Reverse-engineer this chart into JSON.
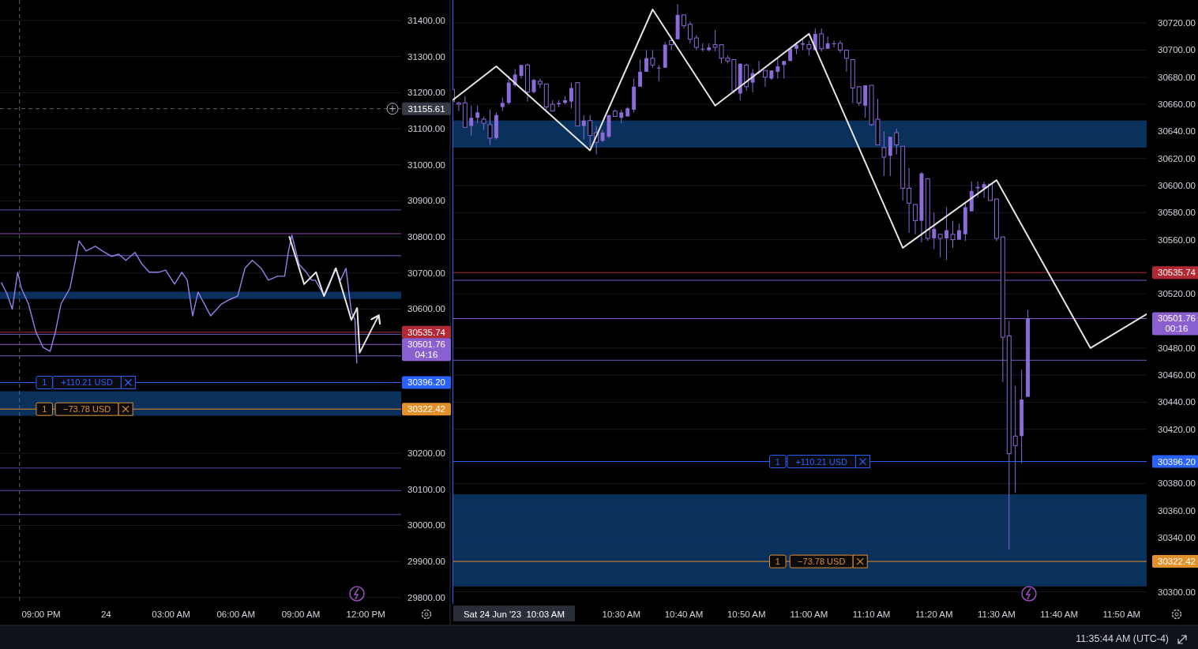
{
  "chart_data": [
    {
      "type": "line",
      "xlim": [
        "2023-06-23T19:06",
        "2023-06-24T13:38"
      ],
      "ylim": [
        29782,
        31457
      ],
      "grid": "y",
      "xticks": [
        {
          "value": "2023-06-23T21:00",
          "label": "09:00 PM"
        },
        {
          "value": "2023-06-24T00:00",
          "label": "24"
        },
        {
          "value": "2023-06-24T03:00",
          "label": "03:00 AM"
        },
        {
          "value": "2023-06-24T06:00",
          "label": "06:00 AM"
        },
        {
          "value": "2023-06-24T09:00",
          "label": "09:00 AM"
        },
        {
          "value": "2023-06-24T12:00",
          "label": "12:00 PM"
        }
      ],
      "yticks": [
        {
          "value": 29800,
          "label": "29800.00"
        },
        {
          "value": 29900,
          "label": "29900.00"
        },
        {
          "value": 30000,
          "label": "30000.00"
        },
        {
          "value": 30100,
          "label": "30100.00"
        },
        {
          "value": 30200,
          "label": "30200.00"
        },
        {
          "value": 30600,
          "label": "30600.00"
        },
        {
          "value": 30700,
          "label": "30700.00"
        },
        {
          "value": 30800,
          "label": "30800.00"
        },
        {
          "value": 30900,
          "label": "30900.00"
        },
        {
          "value": 31000,
          "label": "31000.00"
        },
        {
          "value": 31100,
          "label": "31100.00"
        },
        {
          "value": 31200,
          "label": "31200.00"
        },
        {
          "value": 31300,
          "label": "31300.00"
        },
        {
          "value": 31400,
          "label": "31400.00"
        }
      ],
      "series": [
        {
          "color": "#9a7ee8",
          "x": [
            "2023-06-23T19:10",
            "2023-06-23T19:25",
            "2023-06-23T19:40",
            "2023-06-23T19:55",
            "2023-06-23T20:05",
            "2023-06-23T20:25",
            "2023-06-23T20:45",
            "2023-06-23T21:05",
            "2023-06-23T21:25",
            "2023-06-23T21:40",
            "2023-06-23T21:55",
            "2023-06-23T22:20",
            "2023-06-23T22:35",
            "2023-06-23T22:45",
            "2023-06-23T23:05",
            "2023-06-23T23:30",
            "2023-06-23T23:50",
            "2023-06-24T00:15",
            "2023-06-24T00:35",
            "2023-06-24T00:55",
            "2023-06-24T01:20",
            "2023-06-24T01:40",
            "2023-06-24T02:00",
            "2023-06-24T02:25",
            "2023-06-24T02:45",
            "2023-06-24T03:10",
            "2023-06-24T03:30",
            "2023-06-24T03:45",
            "2023-06-24T04:00",
            "2023-06-24T04:15",
            "2023-06-24T04:50",
            "2023-06-24T05:20",
            "2023-06-24T05:40",
            "2023-06-24T06:05",
            "2023-06-24T06:25",
            "2023-06-24T06:45",
            "2023-06-24T07:10",
            "2023-06-24T07:30",
            "2023-06-24T07:55",
            "2023-06-24T08:15",
            "2023-06-24T08:25",
            "2023-06-24T08:35",
            "2023-06-24T08:55",
            "2023-06-24T09:15",
            "2023-06-24T09:30",
            "2023-06-24T09:40",
            "2023-06-24T10:05",
            "2023-06-24T10:20",
            "2023-06-24T10:35",
            "2023-06-24T10:50",
            "2023-06-24T11:05",
            "2023-06-24T11:20",
            "2023-06-24T11:30",
            "2023-06-24T11:35"
          ],
          "values": [
            30673,
            30643,
            30600,
            30702,
            30658,
            30614,
            30538,
            30494,
            30483,
            30538,
            30614,
            30658,
            30735,
            30789,
            30761,
            30774,
            30761,
            30746,
            30752,
            30735,
            30757,
            30724,
            30702,
            30702,
            30708,
            30669,
            30702,
            30680,
            30581,
            30647,
            30581,
            30614,
            30625,
            30636,
            30713,
            30735,
            30713,
            30680,
            30691,
            30691,
            30757,
            30805,
            30724,
            30702,
            30680,
            30680,
            30636,
            30669,
            30713,
            30680,
            30713,
            30592,
            30570,
            30450
          ]
        },
        {
          "color": "#e6e6e6",
          "x": [
            "2023-06-24T08:28",
            "2023-06-24T09:09",
            "2023-06-24T09:42",
            "2023-06-24T10:04",
            "2023-06-24T10:37",
            "2023-06-24T11:20",
            "2023-06-24T11:36",
            "2023-06-24T11:43",
            "2023-06-24T12:33"
          ],
          "values": [
            30800,
            30669,
            30702,
            30636,
            30713,
            30570,
            30603,
            30479,
            30577
          ]
        }
      ],
      "bands": [
        {
          "axis": "y",
          "from": 30628,
          "to": 30648,
          "color": "#0b3566"
        },
        {
          "axis": "y",
          "from": 30304,
          "to": 30372,
          "color": "#0b3566"
        }
      ],
      "ref_lines": [
        {
          "axis": "y",
          "value": 31155.61,
          "label": "31155.61",
          "color": "#5d606b",
          "line_style": "dashed"
        },
        {
          "axis": "x",
          "value": "2023-06-23T20:00",
          "color": "#5d606b",
          "line_style": "dashed"
        },
        {
          "axis": "y",
          "value": 30875,
          "color": "#5b46b0"
        },
        {
          "axis": "y",
          "value": 30809,
          "color": "#8c45b5"
        },
        {
          "axis": "y",
          "value": 30748,
          "color": "#6e62c0"
        },
        {
          "axis": "y",
          "value": 30535.74,
          "label": "30535.74",
          "color": "#b22833"
        },
        {
          "axis": "y",
          "value": 30530,
          "color": "#6e62c0"
        },
        {
          "axis": "y",
          "value": 30501.76,
          "label": "30501.76\n04:16",
          "color": "#8a5fd0"
        },
        {
          "axis": "y",
          "value": 30470,
          "color": "#6e62c0"
        },
        {
          "axis": "y",
          "value": 30396.2,
          "label": "30396.20",
          "color": "#2962ff"
        },
        {
          "axis": "y",
          "value": 30322.42,
          "label": "30322.42",
          "color": "#e3902a"
        },
        {
          "axis": "y",
          "value": 30159,
          "color": "#5046a8"
        },
        {
          "axis": "y",
          "value": 30096,
          "color": "#5046a8"
        },
        {
          "axis": "y",
          "value": 30030,
          "color": "#5046a8"
        }
      ],
      "annotations": [
        {
          "text": "1",
          "x": "2023-06-23T21:09",
          "y": 30396.2
        },
        {
          "text": "+110.21 USD",
          "x": "2023-06-23T23:07",
          "y": 30396.2
        },
        {
          "text": "1",
          "x": "2023-06-23T21:09",
          "y": 30322.42
        },
        {
          "text": "−73.78 USD",
          "x": "2023-06-23T23:07",
          "y": 30322.42
        }
      ]
    },
    {
      "type": "candlestick",
      "xlim": [
        "2023-06-24T10:03",
        "2023-06-24T11:54"
      ],
      "ylim": [
        30291,
        30737
      ],
      "grid": "y",
      "xticks": [
        {
          "value": "2023-06-24T10:30",
          "label": "10:30 AM"
        },
        {
          "value": "2023-06-24T10:40",
          "label": "10:40 AM"
        },
        {
          "value": "2023-06-24T10:50",
          "label": "10:50 AM"
        },
        {
          "value": "2023-06-24T11:00",
          "label": "11:00 AM"
        },
        {
          "value": "2023-06-24T11:10",
          "label": "11:10 AM"
        },
        {
          "value": "2023-06-24T11:20",
          "label": "11:20 AM"
        },
        {
          "value": "2023-06-24T11:30",
          "label": "11:30 AM"
        },
        {
          "value": "2023-06-24T11:40",
          "label": "11:40 AM"
        },
        {
          "value": "2023-06-24T11:50",
          "label": "11:50 AM"
        }
      ],
      "yticks": [
        {
          "value": 30300,
          "label": "30300.00"
        },
        {
          "value": 30340,
          "label": "30340.00"
        },
        {
          "value": 30360,
          "label": "30360.00"
        },
        {
          "value": 30380,
          "label": "30380.00"
        },
        {
          "value": 30420,
          "label": "30420.00"
        },
        {
          "value": 30440,
          "label": "30440.00"
        },
        {
          "value": 30460,
          "label": "30460.00"
        },
        {
          "value": 30480,
          "label": "30480.00"
        },
        {
          "value": 30520,
          "label": "30520.00"
        },
        {
          "value": 30560,
          "label": "30560.00"
        },
        {
          "value": 30580,
          "label": "30580.00"
        },
        {
          "value": 30600,
          "label": "30600.00"
        },
        {
          "value": 30620,
          "label": "30620.00"
        },
        {
          "value": 30640,
          "label": "30640.00"
        },
        {
          "value": 30660,
          "label": "30660.00"
        },
        {
          "value": 30680,
          "label": "30680.00"
        },
        {
          "value": 30700,
          "label": "30700.00"
        },
        {
          "value": 30720,
          "label": "30720.00"
        }
      ],
      "series": [
        {
          "color": "#8a6bd8",
          "x": [
            "2023-06-24T10:03",
            "2023-06-24T10:04",
            "2023-06-24T10:05",
            "2023-06-24T10:06",
            "2023-06-24T10:07",
            "2023-06-24T10:08",
            "2023-06-24T10:09",
            "2023-06-24T10:10",
            "2023-06-24T10:11",
            "2023-06-24T10:12",
            "2023-06-24T10:13",
            "2023-06-24T10:14",
            "2023-06-24T10:15",
            "2023-06-24T10:16",
            "2023-06-24T10:17",
            "2023-06-24T10:18",
            "2023-06-24T10:19",
            "2023-06-24T10:20",
            "2023-06-24T10:21",
            "2023-06-24T10:22",
            "2023-06-24T10:23",
            "2023-06-24T10:24",
            "2023-06-24T10:25",
            "2023-06-24T10:26",
            "2023-06-24T10:27",
            "2023-06-24T10:28",
            "2023-06-24T10:29",
            "2023-06-24T10:30",
            "2023-06-24T10:31",
            "2023-06-24T10:32",
            "2023-06-24T10:33",
            "2023-06-24T10:34",
            "2023-06-24T10:35",
            "2023-06-24T10:36",
            "2023-06-24T10:37",
            "2023-06-24T10:38",
            "2023-06-24T10:39",
            "2023-06-24T10:40",
            "2023-06-24T10:41",
            "2023-06-24T10:42",
            "2023-06-24T10:43",
            "2023-06-24T10:44",
            "2023-06-24T10:45",
            "2023-06-24T10:46",
            "2023-06-24T10:47",
            "2023-06-24T10:48",
            "2023-06-24T10:49",
            "2023-06-24T10:50",
            "2023-06-24T10:51",
            "2023-06-24T10:52",
            "2023-06-24T10:53",
            "2023-06-24T10:54",
            "2023-06-24T10:55",
            "2023-06-24T10:56",
            "2023-06-24T10:57",
            "2023-06-24T10:58",
            "2023-06-24T10:59",
            "2023-06-24T11:00",
            "2023-06-24T11:01",
            "2023-06-24T11:02",
            "2023-06-24T11:03",
            "2023-06-24T11:04",
            "2023-06-24T11:05",
            "2023-06-24T11:06",
            "2023-06-24T11:07",
            "2023-06-24T11:08",
            "2023-06-24T11:09",
            "2023-06-24T11:10",
            "2023-06-24T11:11",
            "2023-06-24T11:12",
            "2023-06-24T11:13",
            "2023-06-24T11:14",
            "2023-06-24T11:15",
            "2023-06-24T11:16",
            "2023-06-24T11:17",
            "2023-06-24T11:18",
            "2023-06-24T11:19",
            "2023-06-24T11:20",
            "2023-06-24T11:21",
            "2023-06-24T11:22",
            "2023-06-24T11:23",
            "2023-06-24T11:24",
            "2023-06-24T11:25",
            "2023-06-24T11:26",
            "2023-06-24T11:27",
            "2023-06-24T11:28",
            "2023-06-24T11:29",
            "2023-06-24T11:30",
            "2023-06-24T11:31",
            "2023-06-24T11:32",
            "2023-06-24T11:33",
            "2023-06-24T11:34",
            "2023-06-24T11:35"
          ],
          "ohlc": [
            [
              30671,
              30671,
              30662,
              30662
            ],
            [
              30661,
              30662,
              30655,
              30660
            ],
            [
              30661,
              30666,
              30643,
              30643
            ],
            [
              30644,
              30659,
              30637,
              30650
            ],
            [
              30650,
              30659,
              30646,
              30654
            ],
            [
              30649,
              30651,
              30641,
              30646
            ],
            [
              30645,
              30656,
              30630,
              30635
            ],
            [
              30635,
              30654,
              30634,
              30652
            ],
            [
              30658,
              30665,
              30655,
              30661
            ],
            [
              30661,
              30681,
              30660,
              30676
            ],
            [
              30674,
              30686,
              30673,
              30682
            ],
            [
              30681,
              30689,
              30679,
              30689
            ],
            [
              30689,
              30690,
              30662,
              30669
            ],
            [
              30669,
              30679,
              30668,
              30678
            ],
            [
              30677,
              30679,
              30672,
              30675
            ],
            [
              30675,
              30675,
              30656,
              30658
            ],
            [
              30660,
              30663,
              30655,
              30655
            ],
            [
              30660,
              30663,
              30658,
              30661
            ],
            [
              30661,
              30666,
              30660,
              30663
            ],
            [
              30662,
              30676,
              30657,
              30672
            ],
            [
              30676,
              30676,
              30644,
              30644
            ],
            [
              30644,
              30652,
              30634,
              30648
            ],
            [
              30648,
              30652,
              30628,
              30637
            ],
            [
              30639,
              30644,
              30623,
              30632
            ],
            [
              30633,
              30641,
              30632,
              30639
            ],
            [
              30636,
              30652,
              30635,
              30652
            ],
            [
              30655,
              30656,
              30651,
              30651
            ],
            [
              30650,
              30656,
              30646,
              30654
            ],
            [
              30651,
              30658,
              30651,
              30657
            ],
            [
              30656,
              30679,
              30654,
              30673
            ],
            [
              30673,
              30693,
              30673,
              30684
            ],
            [
              30684,
              30700,
              30684,
              30694
            ],
            [
              30694,
              30700,
              30687,
              30689
            ],
            [
              30687,
              30689,
              30677,
              30687
            ],
            [
              30687,
              30706,
              30687,
              30704
            ],
            [
              30707,
              30709,
              30700,
              30704
            ],
            [
              30708,
              30734,
              30708,
              30726
            ],
            [
              30726,
              30726,
              30716,
              30718
            ],
            [
              30719,
              30721,
              30705,
              30708
            ],
            [
              30709,
              30711,
              30700,
              30702
            ],
            [
              30701,
              30705,
              30699,
              30701
            ],
            [
              30700,
              30705,
              30699,
              30702
            ],
            [
              30704,
              30715,
              30699,
              30702
            ],
            [
              30704,
              30704,
              30690,
              30694
            ],
            [
              30694,
              30696,
              30690,
              30692
            ],
            [
              30693,
              30693,
              30668,
              30670
            ],
            [
              30668,
              30690,
              30663,
              30690
            ],
            [
              30689,
              30690,
              30670,
              30673
            ],
            [
              30676,
              30686,
              30669,
              30683
            ],
            [
              30684,
              30692,
              30682,
              30684
            ],
            [
              30685,
              30685,
              30673,
              30680
            ],
            [
              30679,
              30685,
              30678,
              30685
            ],
            [
              30684,
              30694,
              30679,
              30688
            ],
            [
              30689,
              30692,
              30679,
              30692
            ],
            [
              30692,
              30701,
              30692,
              30701
            ],
            [
              30701,
              30706,
              30697,
              30704
            ],
            [
              30704,
              30708,
              30700,
              30705
            ],
            [
              30704,
              30707,
              30696,
              30701
            ],
            [
              30700,
              30716,
              30700,
              30712
            ],
            [
              30712,
              30716,
              30699,
              30701
            ],
            [
              30701,
              30710,
              30701,
              30705
            ],
            [
              30705,
              30707,
              30702,
              30705
            ],
            [
              30705,
              30707,
              30698,
              30700
            ],
            [
              30700,
              30700,
              30684,
              30694
            ],
            [
              30693,
              30693,
              30661,
              30672
            ],
            [
              30673,
              30673,
              30659,
              30661
            ],
            [
              30659,
              30674,
              30650,
              30674
            ],
            [
              30674,
              30674,
              30644,
              30645
            ],
            [
              30649,
              30664,
              30630,
              30630
            ],
            [
              30628,
              30640,
              30607,
              30621
            ],
            [
              30622,
              30636,
              30607,
              30636
            ],
            [
              30639,
              30642,
              30623,
              30630
            ],
            [
              30629,
              30629,
              30589,
              30598
            ],
            [
              30598,
              30613,
              30565,
              30587
            ],
            [
              30586,
              30586,
              30564,
              30574
            ],
            [
              30574,
              30610,
              30558,
              30609
            ],
            [
              30605,
              30605,
              30559,
              30561
            ],
            [
              30561,
              30580,
              30553,
              30568
            ],
            [
              30564,
              30564,
              30547,
              30561
            ],
            [
              30561,
              30584,
              30545,
              30567
            ],
            [
              30564,
              30574,
              30554,
              30560
            ],
            [
              30560,
              30572,
              30560,
              30567
            ],
            [
              30564,
              30588,
              30559,
              30584
            ],
            [
              30581,
              30603,
              30581,
              30596
            ],
            [
              30598,
              30603,
              30591,
              30599
            ],
            [
              30598,
              30603,
              30591,
              30601
            ],
            [
              30601,
              30601,
              30589,
              30589
            ],
            [
              30590,
              30590,
              30559,
              30561
            ],
            [
              30562,
              30562,
              30455,
              30488
            ],
            [
              30489,
              30500,
              30331,
              30402
            ],
            [
              30415,
              30452,
              30373,
              30408
            ],
            [
              30415,
              30464,
              30395,
              30442
            ],
            [
              30444,
              30508,
              30444,
              30502
            ]
          ]
        },
        {
          "type": "line",
          "color": "#e6e6e6",
          "x": [
            "2023-06-24T10:03",
            "2023-06-24T10:10",
            "2023-06-24T10:25",
            "2023-06-24T10:35",
            "2023-06-24T10:45",
            "2023-06-24T11:00",
            "2023-06-24T11:15",
            "2023-06-24T11:30",
            "2023-06-24T11:45",
            "2023-06-24T11:54"
          ],
          "values": [
            30663,
            30688,
            30626,
            30730,
            30659,
            30712,
            30554,
            30604,
            30480,
            30505
          ]
        }
      ],
      "bands": [
        {
          "axis": "y",
          "from": 30628,
          "to": 30648,
          "color": "#0b3566"
        },
        {
          "axis": "y",
          "from": 30304,
          "to": 30372,
          "color": "#0b3566"
        }
      ],
      "ref_lines": [
        {
          "axis": "x",
          "value": "2023-06-24T10:03",
          "label": "Sat 24 Jun '23  10:03 AM",
          "color": "#2962ff"
        },
        {
          "axis": "y",
          "value": 30535.74,
          "label": "30535.74",
          "color": "#b22833"
        },
        {
          "axis": "y",
          "value": 30530,
          "color": "#6e62c0"
        },
        {
          "axis": "y",
          "value": 30501.76,
          "label": "30501.76\n00:16",
          "color": "#8a5fd0"
        },
        {
          "axis": "y",
          "value": 30471,
          "color": "#6e62c0"
        },
        {
          "axis": "y",
          "value": 30396.2,
          "label": "30396.20",
          "color": "#2962ff"
        },
        {
          "axis": "y",
          "value": 30322.42,
          "label": "30322.42",
          "color": "#e3902a"
        }
      ],
      "annotations": [
        {
          "text": "1",
          "x": "2023-06-24T10:55",
          "y": 30396.2
        },
        {
          "text": "+110.21 USD",
          "x": "2023-06-24T11:02",
          "y": 30396.2
        },
        {
          "text": "1",
          "x": "2023-06-24T10:55",
          "y": 30322.42
        },
        {
          "text": "−73.78 USD",
          "x": "2023-06-24T11:02",
          "y": 30322.42
        },
        "11:35:44 AM (UTC-4)"
      ]
    }
  ]
}
